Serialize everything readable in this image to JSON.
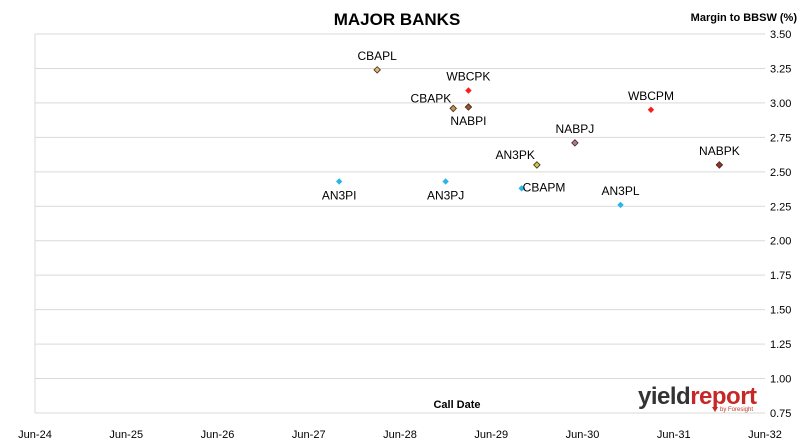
{
  "chart_data": {
    "type": "scatter",
    "title": "MAJOR BANKS",
    "ylabel": "Margin to BBSW (%)",
    "xlabel": "Call Date",
    "x_ticks": [
      "Jun-24",
      "Jun-25",
      "Jun-26",
      "Jun-27",
      "Jun-28",
      "Jun-29",
      "Jun-30",
      "Jun-31",
      "Jun-32"
    ],
    "y_ticks": [
      "0.75",
      "1.00",
      "1.25",
      "1.50",
      "1.75",
      "2.00",
      "2.25",
      "2.50",
      "2.75",
      "3.00",
      "3.25",
      "3.50"
    ],
    "xlim": [
      "2024-06",
      "2032-06"
    ],
    "ylim": [
      0.75,
      3.5
    ],
    "grid": "horizontal",
    "points": [
      {
        "label": "CBAPL",
        "x": "2028-03",
        "y": 3.24,
        "color": "#e1b86a",
        "label_pos": "above"
      },
      {
        "label": "WBCPK",
        "x": "2029-03",
        "y": 3.09,
        "color": "#ff1a1a",
        "label_pos": "above"
      },
      {
        "label": "CBAPK",
        "x": "2029-01",
        "y": 2.96,
        "color": "#c8924f",
        "label_pos": "above-left"
      },
      {
        "label": "NABPI",
        "x": "2029-03",
        "y": 2.97,
        "color": "#a0522d",
        "label_pos": "below"
      },
      {
        "label": "NABPJ",
        "x": "2030-05",
        "y": 2.71,
        "color": "#b07a8c",
        "label_pos": "above"
      },
      {
        "label": "WBCPM",
        "x": "2031-03",
        "y": 2.95,
        "color": "#ff1a1a",
        "label_pos": "above"
      },
      {
        "label": "NABPK",
        "x": "2031-12",
        "y": 2.55,
        "color": "#a52a2a",
        "label_pos": "above"
      },
      {
        "label": "AN3PK",
        "x": "2029-12",
        "y": 2.55,
        "color": "#c9c94a",
        "label_pos": "above-left"
      },
      {
        "label": "CBAPM",
        "x": "2029-10",
        "y": 2.38,
        "color": "#29b5e8",
        "label_pos": "right"
      },
      {
        "label": "AN3PI",
        "x": "2027-10",
        "y": 2.43,
        "color": "#29b5e8",
        "label_pos": "below"
      },
      {
        "label": "AN3PJ",
        "x": "2028-12",
        "y": 2.43,
        "color": "#29b5e8",
        "label_pos": "below"
      },
      {
        "label": "AN3PL",
        "x": "2030-11",
        "y": 2.26,
        "color": "#29b5e8",
        "label_pos": "above"
      }
    ]
  },
  "logo": {
    "text_a": "yield",
    "text_b": "report",
    "sub": "by Foresight",
    "color_a": "#333333",
    "color_b": "#c62828"
  }
}
